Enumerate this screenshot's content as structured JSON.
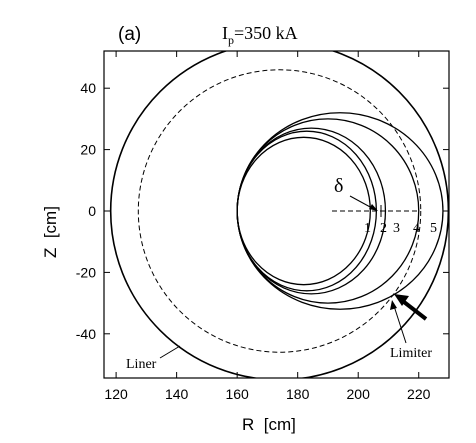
{
  "panel_label": "(a)",
  "title": {
    "symbol": "I",
    "subscript": "p",
    "value": "=350 kA"
  },
  "axes": {
    "xlabel": "R  [cm]",
    "ylabel": "Z  [cm]",
    "xlim": [
      116,
      230
    ],
    "ylim": [
      -55,
      55
    ],
    "xticks": [
      "120",
      "140",
      "160",
      "180",
      "200",
      "220"
    ],
    "yticks": [
      "40",
      "20",
      "0",
      "-20",
      "-40"
    ]
  },
  "annotations": {
    "liner": "Liner",
    "limiter": "Limiter",
    "delta": "δ",
    "surface_numbers": [
      "1",
      "2",
      "3",
      "4",
      "5"
    ]
  },
  "geometry_data": {
    "liner": {
      "center_r": 174,
      "center_z": 0,
      "radius": 55
    },
    "limiter": {
      "center_r": 174,
      "center_z": 0,
      "radius": 46
    },
    "inner_edge_r": 160,
    "surfaces": [
      {
        "label": "1",
        "outer_r": 204,
        "height": 24
      },
      {
        "label": "2",
        "outer_r": 206,
        "height": 26
      },
      {
        "label": "3",
        "outer_r": 209,
        "height": 27
      },
      {
        "label": "4",
        "outer_r": 220,
        "height": 30
      },
      {
        "label": "5",
        "outer_r": 228,
        "height": 32
      }
    ]
  }
}
